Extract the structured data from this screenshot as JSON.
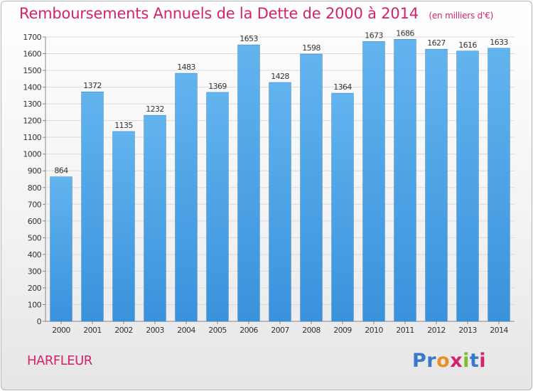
{
  "header": {
    "title": "Remboursements Annuels de la Dette de 2000 à 2014",
    "unit": "(en milliers d'€)"
  },
  "footer": {
    "location": "HARFLEUR",
    "brand": "Proxiti",
    "brand_colors": [
      "#3a78c9",
      "#3a78c9",
      "#e8912a",
      "#d4226c",
      "#7bbf2a",
      "#3a78c9",
      "#d4226c"
    ]
  },
  "colors": {
    "bar": "#3a92dc",
    "bar_top": "#62b4ee",
    "grid": "#d9d9d9",
    "axis_text": "#333333"
  },
  "chart_data": {
    "type": "bar",
    "title": "Remboursements Annuels de la Dette de 2000 à 2014",
    "subtitle": "(en milliers d'€)",
    "xlabel": "",
    "ylabel": "",
    "categories": [
      "2000",
      "2001",
      "2002",
      "2003",
      "2004",
      "2005",
      "2006",
      "2007",
      "2008",
      "2009",
      "2010",
      "2011",
      "2012",
      "2013",
      "2014"
    ],
    "values": [
      864,
      1372,
      1135,
      1232,
      1483,
      1369,
      1653,
      1428,
      1598,
      1364,
      1673,
      1686,
      1627,
      1616,
      1633
    ],
    "ylim": [
      0,
      1700
    ],
    "yticks": [
      0,
      100,
      200,
      300,
      400,
      500,
      600,
      700,
      800,
      900,
      1000,
      1100,
      1200,
      1300,
      1400,
      1500,
      1600,
      1700
    ],
    "grid": true,
    "data_labels": true
  }
}
